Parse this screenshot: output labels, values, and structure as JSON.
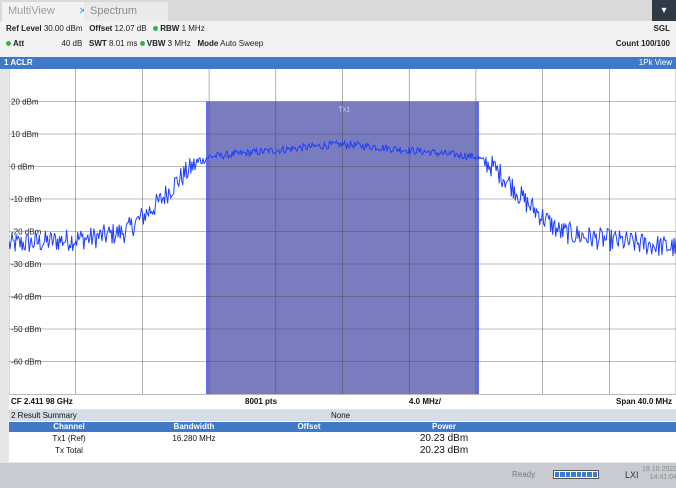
{
  "tabs": {
    "multiview": "MultiView",
    "spectrum": "Spectrum"
  },
  "params": {
    "ref_level_label": "Ref Level",
    "ref_level": "30.00 dBm",
    "offset_label": "Offset",
    "offset": "12.07 dB",
    "rbw_label": "RBW",
    "rbw": "1 MHz",
    "att_label": "Att",
    "att": "40 dB",
    "swt_label": "SWT",
    "swt": "8.01 ms",
    "vbw_label": "VBW",
    "vbw": "3 MHz",
    "mode_label": "Mode",
    "mode": "Auto Sweep",
    "sgl": "SGL",
    "count": "Count 100/100"
  },
  "trace": {
    "title": "1 ACLR",
    "view": "1Pk View",
    "channel_label": "Tx1"
  },
  "chart_data": {
    "type": "line",
    "title": "",
    "xlabel": "",
    "ylabel": "",
    "center_freq": "CF 2.411 98 GHz",
    "points": "8001 pts",
    "div": "4.0 MHz/",
    "span": "Span 40.0 MHz",
    "y_ticks": [
      "20 dBm",
      "10 dBm",
      "0 dBm",
      "-10 dBm",
      "-20 dBm",
      "-30 dBm",
      "-40 dBm",
      "-50 dBm",
      "-60 dBm"
    ],
    "y_tick_values": [
      20,
      10,
      0,
      -10,
      -20,
      -30,
      -40,
      -50,
      -60
    ],
    "ylim": [
      -70,
      30
    ],
    "xlim_mhz": [
      -20,
      20
    ],
    "channel_band_mhz": [
      -8.14,
      8.14
    ],
    "trace_color": "#1f3fff",
    "series": [
      {
        "values_x_mhz": [
          -20,
          -15,
          -13,
          -11,
          -10,
          -9,
          -8,
          -4,
          -1,
          0,
          1,
          4,
          8,
          9,
          10,
          11,
          13,
          15,
          20
        ],
        "values_dbm": [
          -24,
          -22,
          -20,
          -11,
          -5,
          0,
          3,
          5,
          6.5,
          6.8,
          6.5,
          5,
          3,
          0,
          -5,
          -11,
          -20,
          -22,
          -25
        ]
      }
    ]
  },
  "summary": {
    "title": "2 Result Summary",
    "center": "None",
    "headers": [
      "Channel",
      "Bandwidth",
      "Offset",
      "Power"
    ],
    "rows": [
      {
        "channel": "Tx1 (Ref)",
        "bandwidth": "16.280 MHz",
        "power": "20.23 dBm"
      },
      {
        "channel": "Tx Total",
        "bandwidth": "",
        "power": "20.23 dBm"
      }
    ]
  },
  "status": {
    "ready": "Ready",
    "date": "19.10.2022",
    "time": "14:41:04",
    "lan": "LXI"
  },
  "colors": {
    "accent": "#3f79c8",
    "band": "#6a6fb8"
  }
}
